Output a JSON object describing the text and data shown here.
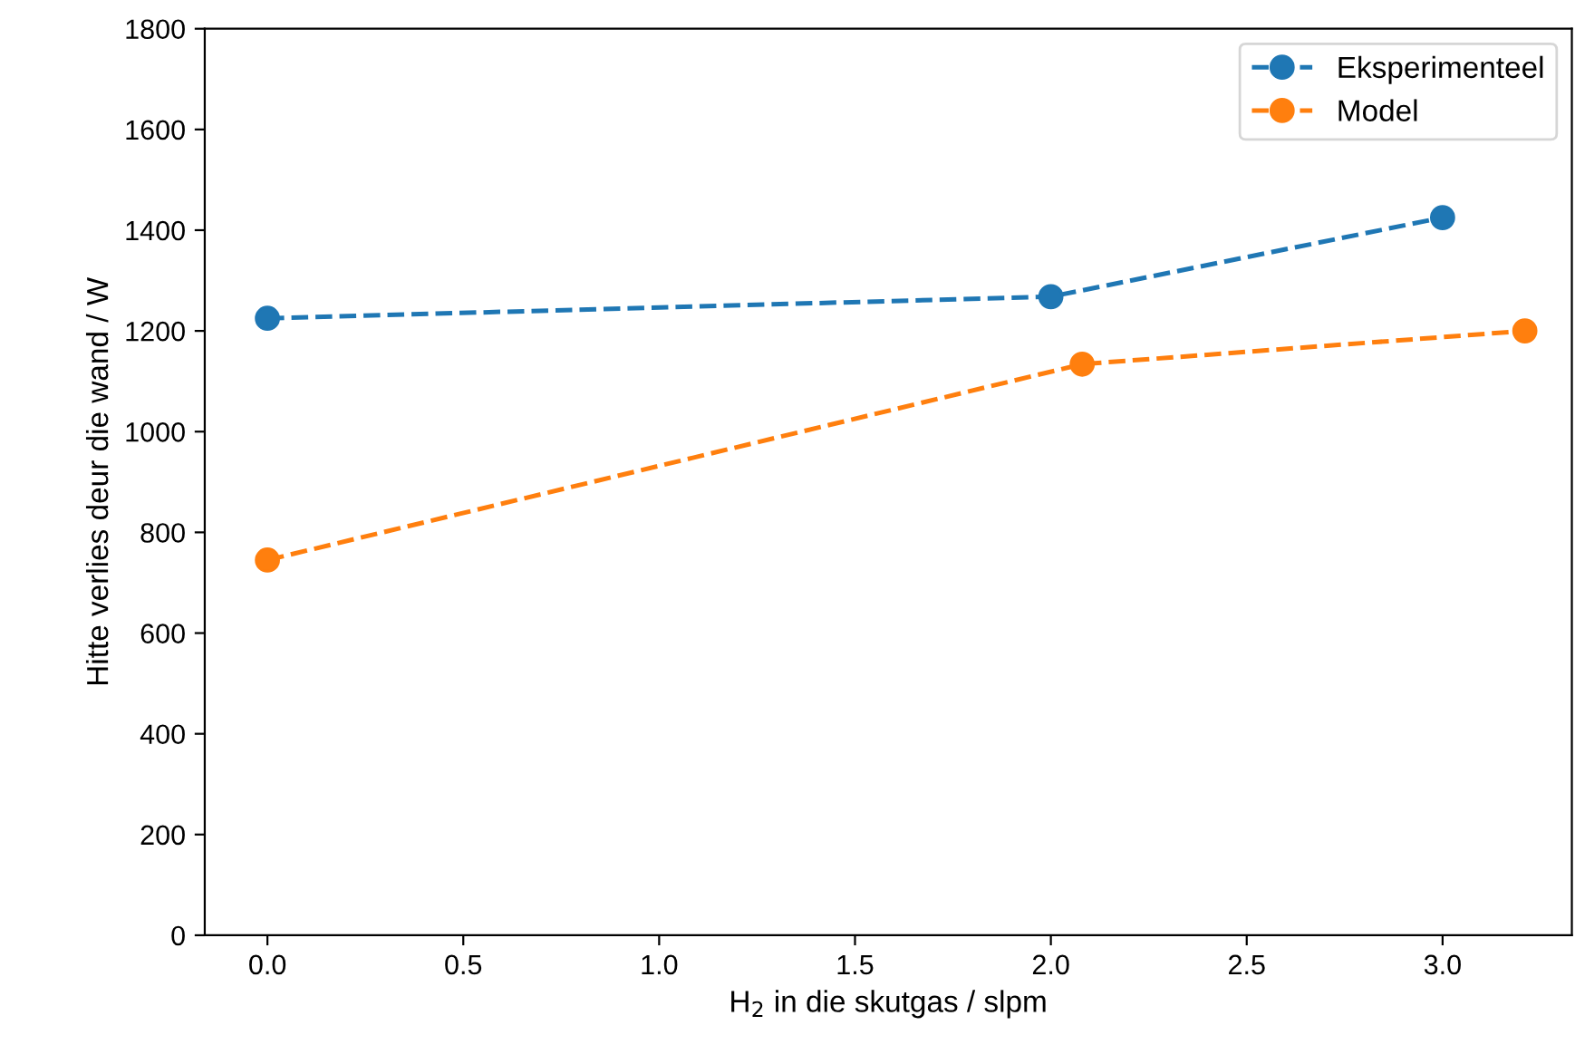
{
  "chart_data": {
    "type": "line",
    "xlabel": "H$_{2}$ in die skutgas / slpm",
    "ylabel": "Hitte verlies deur die wand / W",
    "series": [
      {
        "name": "Eksperimenteel",
        "color": "#1f77b4",
        "x": [
          0.0,
          2.0,
          3.0
        ],
        "values": [
          1225,
          1268,
          1425
        ]
      },
      {
        "name": "Model",
        "color": "#ff7f0e",
        "x": [
          0.0,
          2.08,
          3.21
        ],
        "values": [
          745,
          1134,
          1200
        ]
      }
    ],
    "xlim": [
      -0.16,
      3.33
    ],
    "xticks": [
      {
        "value": 0,
        "label": "0.0"
      },
      0.5,
      {
        "value": 1,
        "label": "1.0"
      },
      1.5,
      {
        "value": 2,
        "label": "2.0"
      },
      2.5,
      {
        "value": 3,
        "label": "3.0"
      }
    ],
    "ylim": [
      0,
      1800
    ],
    "yticks": [
      0,
      200,
      400,
      600,
      800,
      1000,
      1200,
      1400,
      1600,
      1800
    ],
    "marker": "circle",
    "line_style": "dashed",
    "legend": "top right",
    "grid": false
  }
}
